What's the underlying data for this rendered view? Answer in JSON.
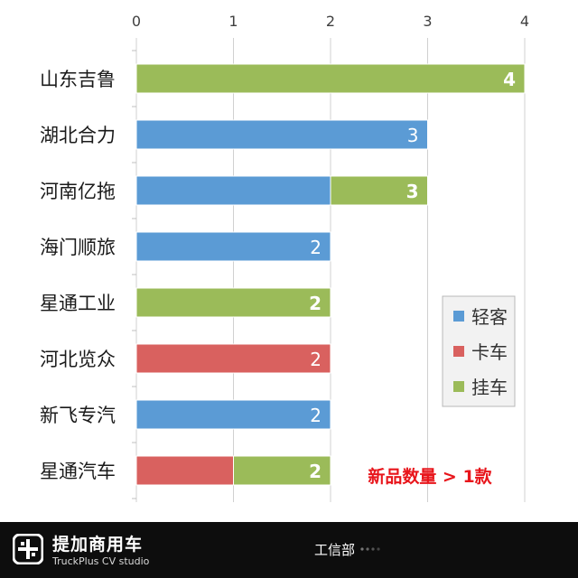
{
  "chart_data": {
    "type": "bar",
    "orientation": "horizontal",
    "stacked": true,
    "categories": [
      "山东吉鲁",
      "湖北合力",
      "河南亿拖",
      "海门顺旅",
      "星通工业",
      "河北览众",
      "新飞专汽",
      "星通汽车"
    ],
    "series": [
      {
        "name": "轻客",
        "color": "#5b9bd5",
        "values": [
          0,
          3,
          2,
          2,
          0,
          0,
          2,
          0
        ]
      },
      {
        "name": "卡车",
        "color": "#d9615f",
        "values": [
          0,
          0,
          0,
          0,
          0,
          2,
          0,
          1
        ]
      },
      {
        "name": "挂车",
        "color": "#9bbb59",
        "values": [
          4,
          0,
          1,
          0,
          2,
          0,
          0,
          1
        ]
      }
    ],
    "totals": [
      "4",
      "3",
      "3",
      "2",
      "2",
      "2",
      "2",
      "2"
    ],
    "x_ticks": [
      "0",
      "1",
      "2",
      "3",
      "4"
    ],
    "xlim": [
      0,
      4
    ],
    "grid": true,
    "axis_position": "top",
    "legend_position": "right",
    "annotation": "新品数量 > 1款",
    "annotation_color": "#e8151b"
  },
  "footer": {
    "brand_title": "提加商用车",
    "brand_subtitle": "TruckPlus CV studio",
    "source": "工信部"
  }
}
